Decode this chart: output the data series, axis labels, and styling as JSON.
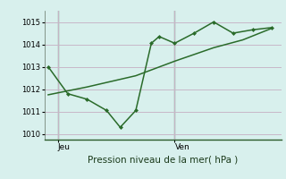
{
  "title": "Pression niveau de la mer( hPa )",
  "bg_color": "#d8f0ed",
  "plot_bg_color": "#d8f0ed",
  "grid_color": "#c8b8c8",
  "line_color": "#2a6b2a",
  "ylim": [
    1009.75,
    1015.5
  ],
  "yticks": [
    1010,
    1011,
    1012,
    1013,
    1014,
    1015
  ],
  "ytick_fontsize": 6,
  "day_labels": [
    "Jeu",
    "Ven"
  ],
  "day_positions": [
    0.5,
    6.5
  ],
  "vline_positions": [
    0.5,
    6.5
  ],
  "xlabel_fontsize": 7.5,
  "line1_x": [
    0,
    1,
    2,
    3,
    3.7,
    4.5,
    5.3,
    5.7,
    6.5,
    7.5,
    8.5,
    9.5,
    10.5,
    11.5
  ],
  "line1_y": [
    1013.0,
    1011.8,
    1011.55,
    1011.05,
    1010.3,
    1011.05,
    1014.05,
    1014.35,
    1014.05,
    1014.5,
    1015.0,
    1014.5,
    1014.65,
    1014.75
  ],
  "line2_x": [
    0,
    2,
    4.5,
    6.5,
    8.5,
    10.0,
    11.5
  ],
  "line2_y": [
    1011.75,
    1012.1,
    1012.6,
    1013.25,
    1013.85,
    1014.2,
    1014.72
  ],
  "xlim": [
    -0.2,
    12
  ],
  "figsize": [
    3.2,
    2.0
  ],
  "dpi": 100
}
